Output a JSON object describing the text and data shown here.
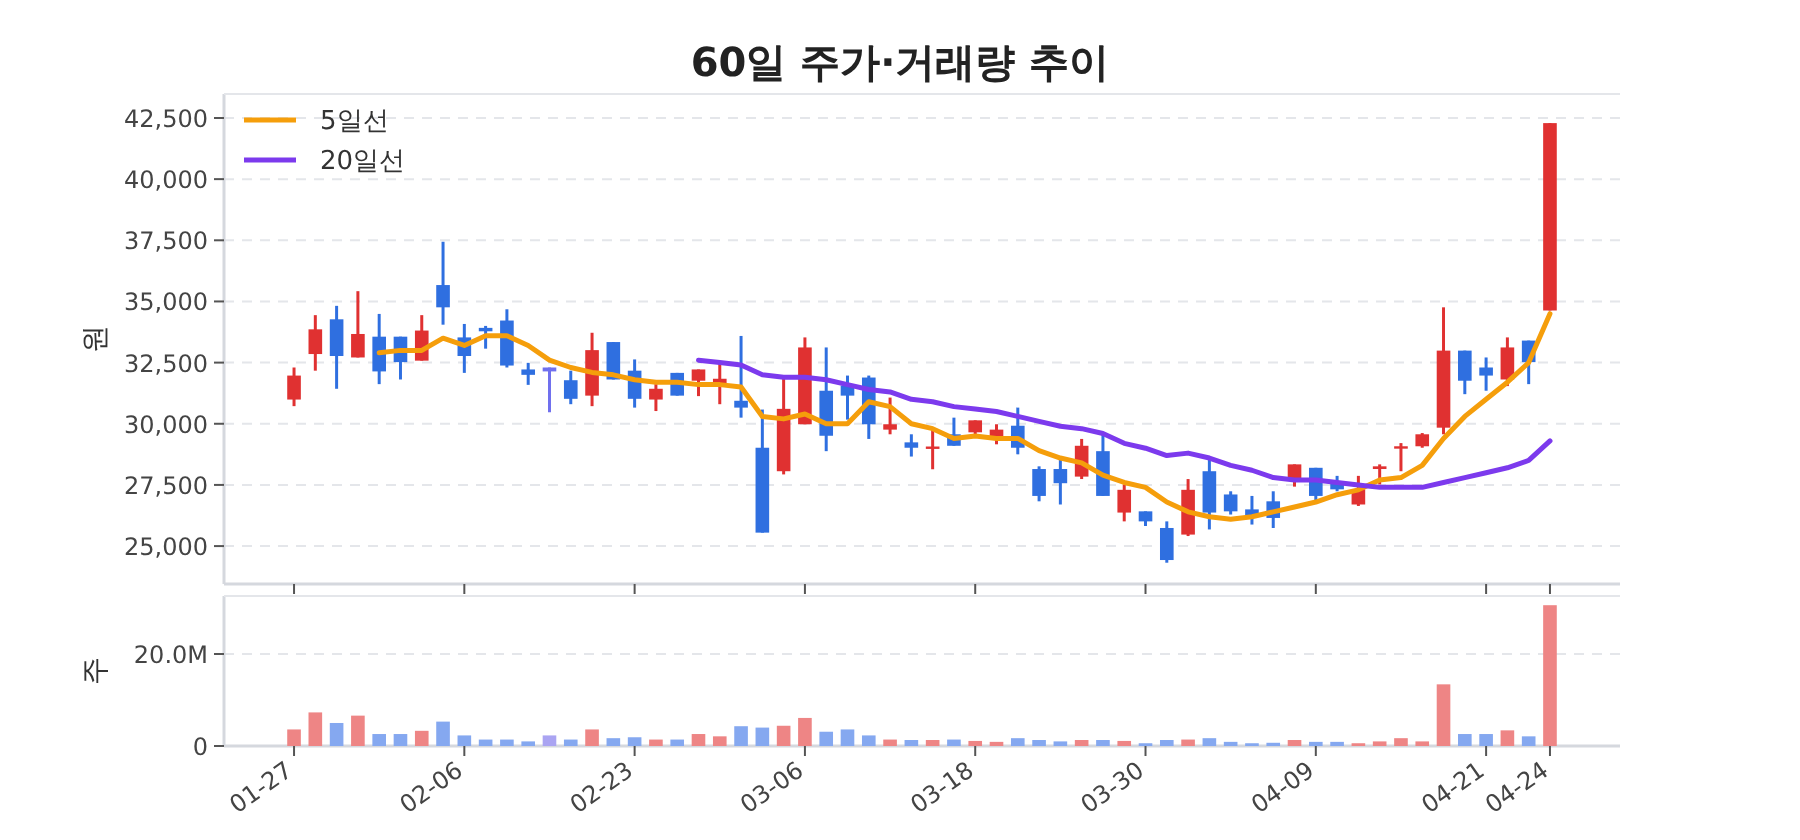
{
  "chart_data": [
    {
      "type": "candlestick",
      "title": "60일 주가·거래량 추이",
      "ylabel": "원",
      "categories": [
        null,
        null,
        null,
        null,
        null,
        null,
        null,
        null,
        null,
        null,
        null,
        null,
        null,
        null,
        null,
        null,
        null,
        null,
        null,
        null,
        null,
        null,
        null,
        null,
        null,
        null,
        null,
        null,
        null,
        null,
        null,
        null,
        null,
        null,
        null,
        null,
        null,
        null,
        null,
        null,
        null,
        null,
        null,
        null,
        null,
        null,
        null,
        null,
        null,
        null,
        null,
        null,
        null,
        null,
        null,
        null,
        null,
        null,
        null,
        null
      ],
      "ohlc": [
        [
          30990,
          32300,
          30720,
          31970
        ],
        [
          32850,
          34440,
          32170,
          33860
        ],
        [
          34270,
          34820,
          31430,
          32770
        ],
        [
          32710,
          35420,
          32710,
          33670
        ],
        [
          33560,
          34490,
          31620,
          32140
        ],
        [
          33560,
          33560,
          31810,
          32520
        ],
        [
          32580,
          34440,
          32580,
          33810
        ],
        [
          35670,
          37440,
          34050,
          34760
        ],
        [
          33530,
          34080,
          32080,
          32770
        ],
        [
          33920,
          34000,
          33070,
          33780
        ],
        [
          34220,
          34680,
          32300,
          32380
        ],
        [
          32220,
          32490,
          31590,
          32000
        ],
        [
          32300,
          32300,
          30470,
          32140
        ],
        [
          31780,
          32170,
          30800,
          31020
        ],
        [
          31150,
          33720,
          30720,
          33010
        ],
        [
          33340,
          33340,
          31810,
          31810
        ],
        [
          32170,
          32630,
          30660,
          31020
        ],
        [
          30990,
          31620,
          30520,
          31430
        ],
        [
          32080,
          32080,
          31150,
          31150
        ],
        [
          31760,
          32220,
          31130,
          32220
        ],
        [
          31540,
          32440,
          30800,
          31840
        ],
        [
          30940,
          33590,
          30250,
          30660
        ],
        [
          29020,
          30580,
          25550,
          25550
        ],
        [
          28060,
          31890,
          27930,
          30610
        ],
        [
          29980,
          33530,
          29980,
          33120
        ],
        [
          31350,
          33120,
          28880,
          29510
        ],
        [
          31560,
          31970,
          30170,
          31150
        ],
        [
          31890,
          31970,
          29380,
          29980
        ],
        [
          29760,
          31070,
          29570,
          29980
        ],
        [
          29240,
          29570,
          28660,
          29020
        ],
        [
          29020,
          29760,
          28140,
          29070
        ],
        [
          29570,
          30250,
          29100,
          29100
        ],
        [
          29650,
          30140,
          29570,
          30140
        ],
        [
          29380,
          29980,
          29160,
          29760
        ],
        [
          29920,
          30660,
          28750,
          29020
        ],
        [
          28150,
          28260,
          26830,
          27050
        ],
        [
          28150,
          28530,
          26700,
          27570
        ],
        [
          27840,
          29380,
          27740,
          29100
        ],
        [
          28880,
          29570,
          27050,
          27050
        ],
        [
          26370,
          27520,
          26010,
          27300
        ],
        [
          26420,
          26420,
          25820,
          26010
        ],
        [
          25740,
          26010,
          24320,
          24430
        ],
        [
          25470,
          27740,
          25410,
          27300
        ],
        [
          28060,
          28560,
          25680,
          26370
        ],
        [
          27110,
          27240,
          26290,
          26420
        ],
        [
          26500,
          27050,
          25880,
          26230
        ],
        [
          26830,
          27240,
          25740,
          26150
        ],
        [
          27710,
          28340,
          27430,
          28340
        ],
        [
          28200,
          28200,
          26750,
          27050
        ],
        [
          27650,
          27870,
          27240,
          27320
        ],
        [
          26700,
          27870,
          26640,
          27320
        ],
        [
          28150,
          28340,
          27520,
          28260
        ],
        [
          29020,
          29210,
          28060,
          29080
        ],
        [
          29080,
          29620,
          29020,
          29570
        ],
        [
          29840,
          34760,
          29570,
          32990
        ],
        [
          32990,
          32990,
          31210,
          31760
        ],
        [
          32300,
          32710,
          31350,
          31970
        ],
        [
          31810,
          33530,
          31540,
          33120
        ],
        [
          33400,
          33400,
          31620,
          32520
        ],
        [
          34630,
          42290,
          34630,
          42290
        ]
      ],
      "colors": [
        "#e03131",
        "#e03131",
        "#2f6fe0",
        "#e03131",
        "#2f6fe0",
        "#2f6fe0",
        "#e03131",
        "#2f6fe0",
        "#2f6fe0",
        "#2f6fe0",
        "#2f6fe0",
        "#2f6fe0",
        "#7070ee",
        "#2f6fe0",
        "#e03131",
        "#2f6fe0",
        "#2f6fe0",
        "#e03131",
        "#2f6fe0",
        "#e03131",
        "#e03131",
        "#2f6fe0",
        "#2f6fe0",
        "#e03131",
        "#e03131",
        "#2f6fe0",
        "#2f6fe0",
        "#2f6fe0",
        "#e03131",
        "#2f6fe0",
        "#e03131",
        "#2f6fe0",
        "#e03131",
        "#e03131",
        "#2f6fe0",
        "#2f6fe0",
        "#2f6fe0",
        "#e03131",
        "#2f6fe0",
        "#e03131",
        "#2f6fe0",
        "#2f6fe0",
        "#e03131",
        "#2f6fe0",
        "#2f6fe0",
        "#2f6fe0",
        "#2f6fe0",
        "#e03131",
        "#2f6fe0",
        "#2f6fe0",
        "#e03131",
        "#e03131",
        "#e03131",
        "#e03131",
        "#e03131",
        "#2f6fe0",
        "#2f6fe0",
        "#e03131",
        "#2f6fe0",
        "#e03131"
      ],
      "series": [
        {
          "name": "5일선",
          "type": "line",
          "color": "#f59e0b",
          "values": [
            null,
            null,
            null,
            null,
            32900,
            33000,
            33000,
            33500,
            33200,
            33600,
            33600,
            33200,
            32600,
            32300,
            32100,
            32000,
            31800,
            31700,
            31700,
            31600,
            31600,
            31500,
            30300,
            30200,
            30400,
            30000,
            30000,
            30900,
            30700,
            30000,
            29800,
            29400,
            29500,
            29400,
            29400,
            28900,
            28600,
            28400,
            27900,
            27600,
            27400,
            26800,
            26400,
            26200,
            26100,
            26200,
            26400,
            26600,
            26800,
            27100,
            27300,
            27700,
            27800,
            28300,
            29400,
            30300,
            31000,
            31700,
            32500,
            34500
          ]
        },
        {
          "name": "20일선",
          "type": "line",
          "color": "#7c3aed",
          "values": [
            null,
            null,
            null,
            null,
            null,
            null,
            null,
            null,
            null,
            null,
            null,
            null,
            null,
            null,
            null,
            null,
            null,
            null,
            null,
            32600,
            32500,
            32400,
            32000,
            31900,
            31900,
            31800,
            31600,
            31400,
            31300,
            31000,
            30900,
            30700,
            30600,
            30500,
            30300,
            30100,
            29900,
            29800,
            29600,
            29200,
            29000,
            28700,
            28800,
            28600,
            28300,
            28100,
            27800,
            27700,
            27700,
            27600,
            27500,
            27400,
            27400,
            27400,
            27600,
            27800,
            28000,
            28200,
            28500,
            29300
          ]
        }
      ],
      "ylim": [
        23450,
        43480
      ],
      "yticks": [
        {
          "value": 25000,
          "label": "25,000"
        },
        {
          "value": 27500,
          "label": "27,500"
        },
        {
          "value": 30000,
          "label": "30,000"
        },
        {
          "value": 32500,
          "label": "32,500"
        },
        {
          "value": 35000,
          "label": "35,000"
        },
        {
          "value": 37500,
          "label": "37,500"
        },
        {
          "value": 40000,
          "label": "40,000"
        },
        {
          "value": 42500,
          "label": "42,500"
        }
      ],
      "grid": "y",
      "legend": "top left",
      "tick_labels": "y"
    },
    {
      "type": "bar",
      "ylabel": "주",
      "categories": [
        "01-27",
        null,
        null,
        null,
        null,
        null,
        null,
        null,
        "02-06",
        null,
        null,
        null,
        null,
        null,
        null,
        null,
        "02-23",
        null,
        null,
        null,
        null,
        null,
        null,
        null,
        "03-06",
        null,
        null,
        null,
        null,
        null,
        null,
        null,
        "03-18",
        null,
        null,
        null,
        null,
        null,
        null,
        null,
        "03-30",
        null,
        null,
        null,
        null,
        null,
        null,
        null,
        "04-09",
        null,
        null,
        null,
        null,
        null,
        null,
        null,
        "04-21",
        null,
        null,
        "04-24"
      ],
      "values": [
        3600000,
        7300000,
        5000000,
        6600000,
        2600000,
        2600000,
        3300000,
        5300000,
        2300000,
        1400000,
        1400000,
        1000000,
        2300000,
        1400000,
        3600000,
        1700000,
        1900000,
        1400000,
        1400000,
        2600000,
        2100000,
        4300000,
        4000000,
        4400000,
        6100000,
        3100000,
        3600000,
        2300000,
        1400000,
        1300000,
        1300000,
        1400000,
        1100000,
        900000,
        1700000,
        1300000,
        1000000,
        1300000,
        1300000,
        1100000,
        600000,
        1300000,
        1400000,
        1700000,
        900000,
        600000,
        700000,
        1300000,
        900000,
        900000,
        600000,
        1000000,
        1700000,
        1000000,
        13400000,
        2600000,
        2600000,
        3400000,
        2100000,
        30600000
      ],
      "colors": [
        "#ee8585",
        "#ee8585",
        "#85a8f0",
        "#ee8585",
        "#85a8f0",
        "#85a8f0",
        "#ee8585",
        "#85a8f0",
        "#85a8f0",
        "#85a8f0",
        "#85a8f0",
        "#85a8f0",
        "#aaa4f2",
        "#85a8f0",
        "#ee8585",
        "#85a8f0",
        "#85a8f0",
        "#ee8585",
        "#85a8f0",
        "#ee8585",
        "#ee8585",
        "#85a8f0",
        "#85a8f0",
        "#ee8585",
        "#ee8585",
        "#85a8f0",
        "#85a8f0",
        "#85a8f0",
        "#ee8585",
        "#85a8f0",
        "#ee8585",
        "#85a8f0",
        "#ee8585",
        "#ee8585",
        "#85a8f0",
        "#85a8f0",
        "#85a8f0",
        "#ee8585",
        "#85a8f0",
        "#ee8585",
        "#85a8f0",
        "#85a8f0",
        "#ee8585",
        "#85a8f0",
        "#85a8f0",
        "#85a8f0",
        "#85a8f0",
        "#ee8585",
        "#85a8f0",
        "#85a8f0",
        "#ee8585",
        "#ee8585",
        "#ee8585",
        "#ee8585",
        "#ee8585",
        "#85a8f0",
        "#85a8f0",
        "#ee8585",
        "#85a8f0",
        "#ee8585"
      ],
      "ylim": [
        0,
        32600000
      ],
      "yticks": [
        0,
        {
          "value": 20000000,
          "label": "20.0M"
        }
      ],
      "grid": "y"
    }
  ]
}
